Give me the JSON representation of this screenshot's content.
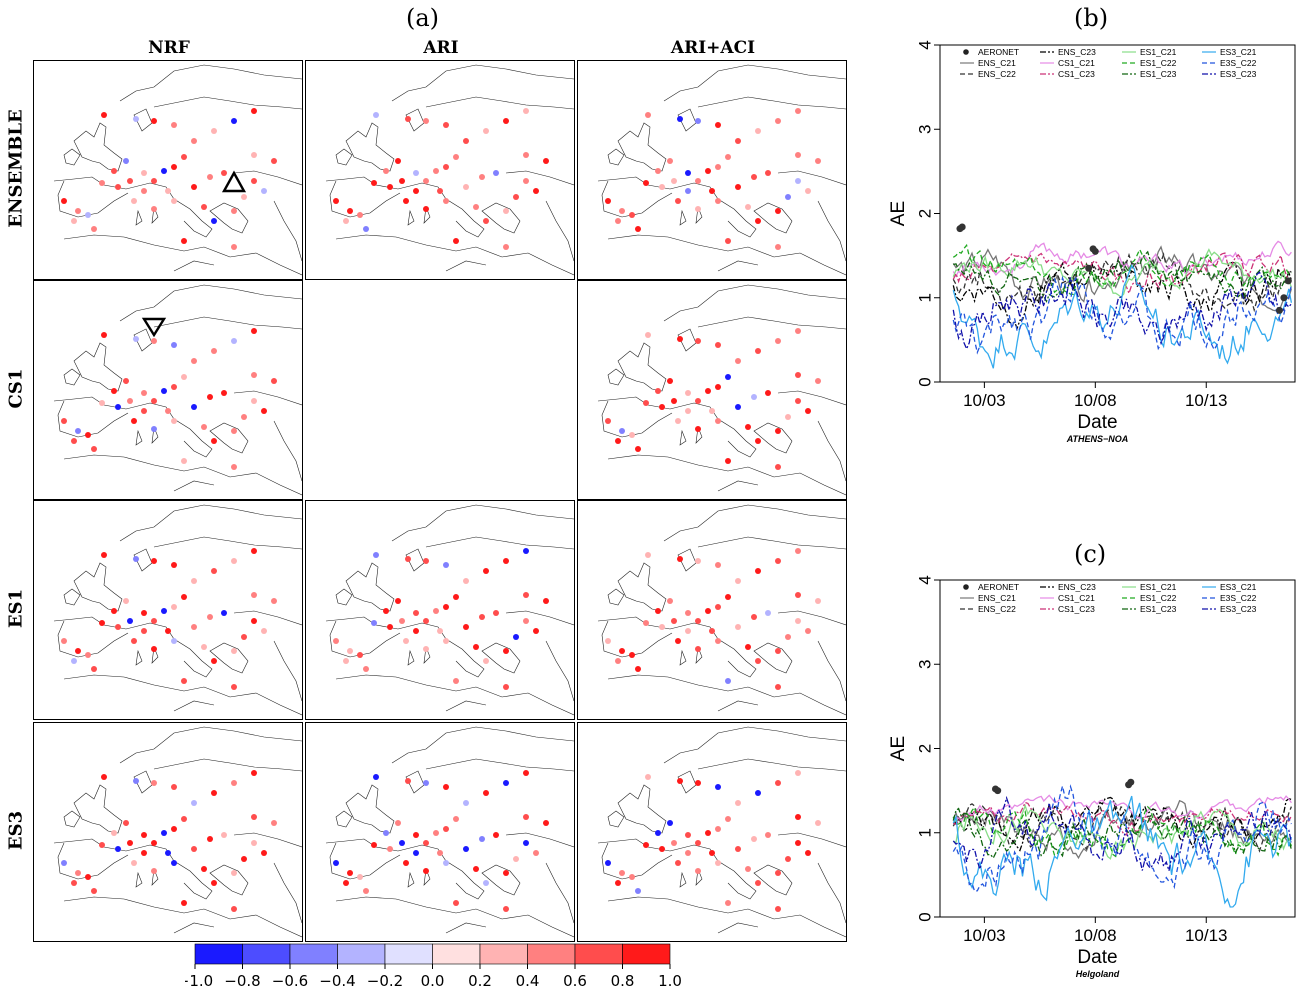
{
  "panel_labels": {
    "a": "(a)",
    "b": "(b)",
    "c": "(c)"
  },
  "grid": {
    "columns": [
      "NRF",
      "ARI",
      "ARI+ACI"
    ],
    "rows": [
      "ENSEMBLE",
      "CS1",
      "ES1",
      "ES3"
    ],
    "empty_cells": [
      [
        1,
        1
      ]
    ],
    "markers": [
      {
        "row": 0,
        "col": 0,
        "shape": "triangle-up"
      },
      {
        "row": 1,
        "col": 0,
        "shape": "triangle-down"
      }
    ]
  },
  "colorbar": {
    "ticks": [
      "−1.0",
      "−0.8",
      "−0.6",
      "−0.4",
      "−0.2",
      "0.0",
      "0.2",
      "0.4",
      "0.6",
      "0.8",
      "1.0"
    ],
    "colors": [
      "#1a1aff",
      "#4d4dff",
      "#8080ff",
      "#b3b3ff",
      "#e0e0ff",
      "#ffe0e0",
      "#ffb3b3",
      "#ff8080",
      "#ff4d4d",
      "#ff1a1a"
    ]
  },
  "legend_entries": [
    "AERONET",
    "ENS_C21",
    "ENS_C22",
    "ENS_C23",
    "CS1_C21",
    "CS1_C23",
    "ES1_C21",
    "ES1_C22",
    "ES1_C23",
    "ES3_C21",
    "E3S_C22",
    "ES3_C23"
  ],
  "chart_data": [
    {
      "id": "b",
      "type": "line",
      "ylabel": "AE",
      "xlabel": "Date",
      "station": "ATHENS−NOA",
      "ylim": [
        0,
        4
      ],
      "yticks": [
        "0",
        "1",
        "2",
        "3",
        "4"
      ],
      "xticks": [
        "10/03",
        "10/08",
        "10/13"
      ],
      "xtick_days": [
        3,
        8,
        13
      ],
      "xlim_days": [
        1,
        17
      ],
      "aeronet": [
        [
          1.9,
          1.82
        ],
        [
          2.0,
          1.84
        ],
        [
          7.7,
          1.35
        ],
        [
          7.9,
          1.58
        ],
        [
          8.0,
          1.55
        ],
        [
          16.3,
          0.85
        ],
        [
          16.5,
          1.0
        ],
        [
          16.7,
          1.2
        ]
      ],
      "series": [
        {
          "name": "ENS_C21",
          "color": "#777777",
          "dash": "",
          "base": 1.25,
          "amp": 0.25
        },
        {
          "name": "ENS_C22",
          "color": "#333333",
          "dash": "5,3",
          "base": 1.2,
          "amp": 0.3
        },
        {
          "name": "ENS_C23",
          "color": "#000000",
          "dash": "6,2,2,2",
          "base": 1.15,
          "amp": 0.3
        },
        {
          "name": "CS1_C21",
          "color": "#e58ae5",
          "dash": "",
          "base": 1.45,
          "amp": 0.15
        },
        {
          "name": "CS1_C23",
          "color": "#cc3377",
          "dash": "6,2,2,2",
          "base": 1.3,
          "amp": 0.2
        },
        {
          "name": "ES1_C21",
          "color": "#88dd88",
          "dash": "",
          "base": 1.3,
          "amp": 0.2
        },
        {
          "name": "ES1_C22",
          "color": "#22aa22",
          "dash": "5,3",
          "base": 1.3,
          "amp": 0.2
        },
        {
          "name": "ES1_C23",
          "color": "#116611",
          "dash": "6,2,2,2",
          "base": 1.25,
          "amp": 0.2
        },
        {
          "name": "ES3_C21",
          "color": "#33aaee",
          "dash": "",
          "base": 0.75,
          "amp": 0.4
        },
        {
          "name": "E3S_C22",
          "color": "#2255dd",
          "dash": "5,3",
          "base": 0.8,
          "amp": 0.4
        },
        {
          "name": "ES3_C23",
          "color": "#1111aa",
          "dash": "6,2,2,2",
          "base": 0.85,
          "amp": 0.35
        }
      ]
    },
    {
      "id": "c",
      "type": "line",
      "ylabel": "AE",
      "xlabel": "Date",
      "station": "Helgoland",
      "ylim": [
        0,
        4
      ],
      "yticks": [
        "0",
        "1",
        "2",
        "3",
        "4"
      ],
      "xticks": [
        "10/03",
        "10/08",
        "10/13"
      ],
      "xtick_days": [
        3,
        8,
        13
      ],
      "xlim_days": [
        1,
        17
      ],
      "aeronet": [
        [
          3.5,
          1.52
        ],
        [
          3.6,
          1.5
        ],
        [
          9.5,
          1.57
        ],
        [
          9.6,
          1.6
        ]
      ],
      "series": [
        {
          "name": "ENS_C21",
          "color": "#777777",
          "dash": "",
          "base": 1.05,
          "amp": 0.25
        },
        {
          "name": "ENS_C22",
          "color": "#333333",
          "dash": "5,3",
          "base": 1.1,
          "amp": 0.25
        },
        {
          "name": "ENS_C23",
          "color": "#000000",
          "dash": "6,2,2,2",
          "base": 1.15,
          "amp": 0.25
        },
        {
          "name": "CS1_C21",
          "color": "#e58ae5",
          "dash": "",
          "base": 1.3,
          "amp": 0.12
        },
        {
          "name": "CS1_C23",
          "color": "#cc3377",
          "dash": "6,2,2,2",
          "base": 1.2,
          "amp": 0.15
        },
        {
          "name": "ES1_C21",
          "color": "#88dd88",
          "dash": "",
          "base": 1.0,
          "amp": 0.25
        },
        {
          "name": "ES1_C22",
          "color": "#22aa22",
          "dash": "5,3",
          "base": 1.0,
          "amp": 0.25
        },
        {
          "name": "ES1_C23",
          "color": "#116611",
          "dash": "6,2,2,2",
          "base": 1.0,
          "amp": 0.25
        },
        {
          "name": "ES3_C21",
          "color": "#33aaee",
          "dash": "",
          "base": 0.8,
          "amp": 0.45
        },
        {
          "name": "E3S_C22",
          "color": "#2255dd",
          "dash": "5,3",
          "base": 0.9,
          "amp": 0.4
        },
        {
          "name": "ES3_C23",
          "color": "#1111aa",
          "dash": "6,2,2,2",
          "base": 0.95,
          "amp": 0.35
        }
      ]
    }
  ]
}
